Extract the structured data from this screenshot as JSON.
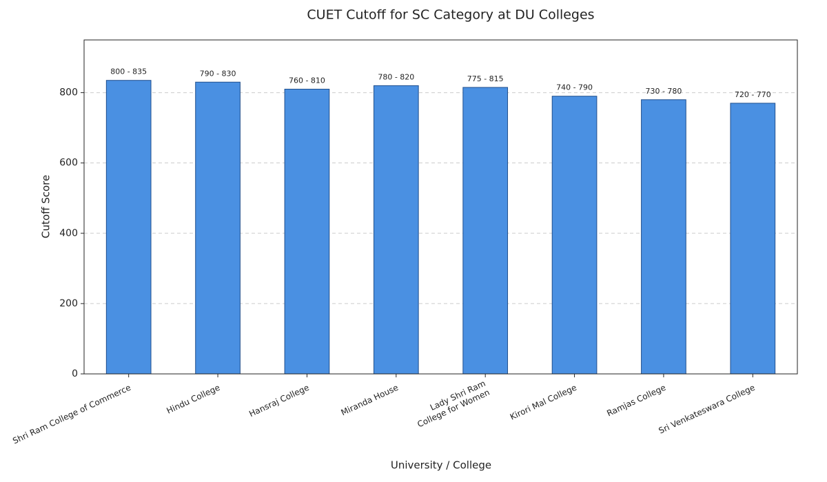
{
  "chart_data": {
    "type": "bar",
    "title": "CUET Cutoff for SC Category at DU Colleges",
    "x_label": "University / College",
    "y_label": "Cutoff Score",
    "categories": [
      "Shri Ram College of Commerce",
      "Hindu College",
      "Hansraj College",
      "Miranda House",
      "Lady Shri Ram\nCollege for Women",
      "Kirori Mal College",
      "Ramjas College",
      "Sri Venkateswara College"
    ],
    "values": [
      835,
      830,
      810,
      820,
      815,
      790,
      780,
      770
    ],
    "value_labels": [
      "800 - 835",
      "790 - 830",
      "760 - 810",
      "780 - 820",
      "775 - 815",
      "740 - 790",
      "730 - 780",
      "720 - 770"
    ],
    "color": "#4a90e2",
    "edge_color": "#1f4e8c",
    "ylim": [
      0,
      950
    ],
    "yticks": [
      0,
      200,
      400,
      600,
      800
    ],
    "grid": true
  }
}
